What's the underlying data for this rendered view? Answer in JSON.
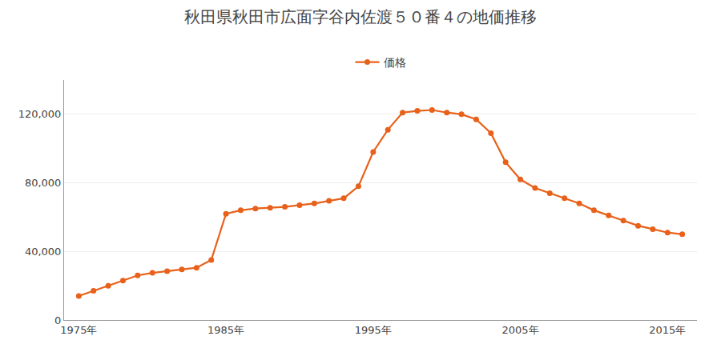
{
  "chart_data": {
    "type": "line",
    "title": "秋田県秋田市広面字谷内佐渡５０番４の地価推移",
    "x": [
      1975,
      1976,
      1977,
      1978,
      1979,
      1980,
      1981,
      1982,
      1983,
      1984,
      1985,
      1986,
      1987,
      1988,
      1989,
      1990,
      1991,
      1992,
      1993,
      1994,
      1995,
      1996,
      1997,
      1998,
      1999,
      2000,
      2001,
      2002,
      2003,
      2004,
      2005,
      2006,
      2007,
      2008,
      2009,
      2010,
      2011,
      2012,
      2013,
      2014,
      2015,
      2016
    ],
    "series": [
      {
        "name": "価格",
        "color": "#e8611a",
        "marker": "circle",
        "line_style": "solid",
        "values": [
          14000,
          17000,
          20000,
          23000,
          26000,
          27500,
          28500,
          29500,
          30500,
          35000,
          62000,
          64000,
          65000,
          65500,
          66000,
          67000,
          68000,
          69500,
          71000,
          78000,
          98000,
          111000,
          121000,
          122000,
          122500,
          121000,
          120000,
          117000,
          109000,
          92000,
          82000,
          77000,
          74000,
          71000,
          68000,
          64000,
          61000,
          58000,
          55000,
          53000,
          51000,
          50000
        ]
      }
    ],
    "xlim": [
      1974,
      2017
    ],
    "ylim": [
      0,
      140000
    ],
    "xticks": [
      {
        "value": 1975,
        "label": "1975年"
      },
      {
        "value": 1985,
        "label": "1985年"
      },
      {
        "value": 1995,
        "label": "1995年"
      },
      {
        "value": 2005,
        "label": "2005年"
      },
      {
        "value": 2015,
        "label": "2015年"
      }
    ],
    "yticks": [
      0,
      {
        "value": 40000,
        "label": "40,000"
      },
      {
        "value": 80000,
        "label": "80,000"
      },
      {
        "value": 120000,
        "label": "120,000"
      }
    ],
    "grid": "y",
    "legend": "top"
  }
}
